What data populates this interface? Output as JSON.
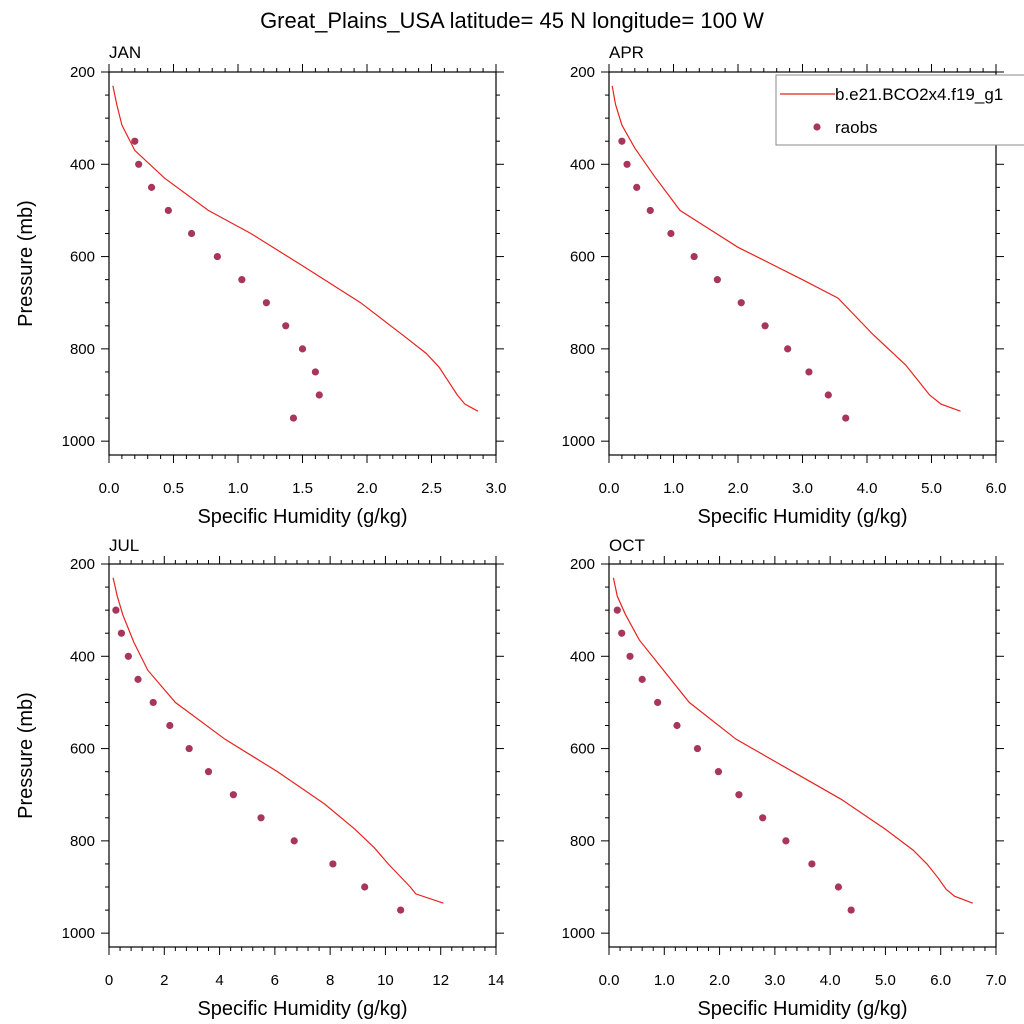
{
  "figure": {
    "title": "Great_Plains_USA  latitude= 45 N longitude= 100 W",
    "legend": {
      "entries": [
        {
          "label": "b.e21.BCO2x4.f19_g1",
          "kind": "line",
          "color": "#e8231f"
        },
        {
          "label": "raobs",
          "kind": "marker",
          "color": "#a8365a"
        }
      ]
    }
  },
  "chart_data": [
    {
      "type": "line",
      "panel_label": "JAN",
      "xlabel": "Specific Humidity (g/kg)",
      "ylabel": "Pressure (mb)",
      "xlim": [
        0,
        3
      ],
      "ylim": [
        200,
        1030
      ],
      "y_inverted": true,
      "xticks": [
        0,
        0.5,
        1,
        1.5,
        2,
        2.5,
        3
      ],
      "xtick_labels": [
        "0.0",
        "0.5",
        "1.0",
        "1.5",
        "2.0",
        "2.5",
        "3.0"
      ],
      "yticks": [
        200,
        400,
        600,
        800,
        1000
      ],
      "ytick_labels": [
        "200",
        "400",
        "600",
        "800",
        "1000"
      ],
      "series": [
        {
          "name": "b.e21.BCO2x4.f19_g1",
          "kind": "line",
          "color": "#e8231f",
          "x": [
            0.03,
            0.06,
            0.1,
            0.2,
            0.43,
            0.77,
            1.1,
            1.5,
            1.95,
            2.3,
            2.46,
            2.56,
            2.63,
            2.7,
            2.76,
            2.86
          ],
          "y": [
            230,
            270,
            315,
            370,
            430,
            500,
            550,
            620,
            700,
            775,
            810,
            840,
            870,
            900,
            920,
            935
          ]
        },
        {
          "name": "raobs",
          "kind": "marker",
          "color": "#a8365a",
          "x": [
            0.2,
            0.23,
            0.33,
            0.46,
            0.64,
            0.84,
            1.03,
            1.22,
            1.37,
            1.5,
            1.6,
            1.63,
            1.43
          ],
          "y": [
            350,
            400,
            450,
            500,
            550,
            600,
            650,
            700,
            750,
            800,
            850,
            900,
            950
          ]
        }
      ]
    },
    {
      "type": "line",
      "panel_label": "APR",
      "xlabel": "Specific Humidity (g/kg)",
      "ylabel": "",
      "xlim": [
        0,
        6
      ],
      "ylim": [
        200,
        1030
      ],
      "y_inverted": true,
      "xticks": [
        0,
        1,
        2,
        3,
        4,
        5,
        6
      ],
      "xtick_labels": [
        "0.0",
        "1.0",
        "2.0",
        "3.0",
        "4.0",
        "5.0",
        "6.0"
      ],
      "yticks": [
        200,
        400,
        600,
        800,
        1000
      ],
      "ytick_labels": [
        "200",
        "400",
        "600",
        "800",
        "1000"
      ],
      "series": [
        {
          "name": "b.e21.BCO2x4.f19_g1",
          "kind": "line",
          "color": "#e8231f",
          "x": [
            0.05,
            0.1,
            0.2,
            0.4,
            0.7,
            1.1,
            1.55,
            2.0,
            2.5,
            3.0,
            3.55,
            4.1,
            4.6,
            4.97,
            5.15,
            5.45
          ],
          "y": [
            230,
            270,
            315,
            365,
            425,
            500,
            540,
            580,
            615,
            650,
            690,
            770,
            835,
            900,
            920,
            935
          ]
        },
        {
          "name": "raobs",
          "kind": "marker",
          "color": "#a8365a",
          "x": [
            0.2,
            0.28,
            0.43,
            0.64,
            0.96,
            1.32,
            1.68,
            2.05,
            2.42,
            2.77,
            3.1,
            3.4,
            3.67
          ],
          "y": [
            350,
            400,
            450,
            500,
            550,
            600,
            650,
            700,
            750,
            800,
            850,
            900,
            950
          ]
        }
      ]
    },
    {
      "type": "line",
      "panel_label": "JUL",
      "xlabel": "Specific Humidity (g/kg)",
      "ylabel": "Pressure (mb)",
      "xlim": [
        0,
        14
      ],
      "ylim": [
        200,
        1030
      ],
      "y_inverted": true,
      "xticks": [
        0,
        2,
        4,
        6,
        8,
        10,
        12,
        14
      ],
      "xtick_labels": [
        "0",
        "2",
        "4",
        "6",
        "8",
        "10",
        "12",
        "14"
      ],
      "yticks": [
        200,
        400,
        600,
        800,
        1000
      ],
      "ytick_labels": [
        "200",
        "400",
        "600",
        "800",
        "1000"
      ],
      "series": [
        {
          "name": "b.e21.BCO2x4.f19_g1",
          "kind": "line",
          "color": "#e8231f",
          "x": [
            0.15,
            0.3,
            0.5,
            0.9,
            1.4,
            2.4,
            4.2,
            6.1,
            7.8,
            8.9,
            9.6,
            10.1,
            10.5,
            10.9,
            11.1,
            12.1
          ],
          "y": [
            230,
            270,
            310,
            370,
            430,
            500,
            580,
            650,
            720,
            775,
            815,
            850,
            875,
            900,
            915,
            935
          ]
        },
        {
          "name": "raobs",
          "kind": "marker",
          "color": "#a8365a",
          "x": [
            0.25,
            0.45,
            0.7,
            1.05,
            1.6,
            2.2,
            2.9,
            3.6,
            4.5,
            5.5,
            6.7,
            8.1,
            9.25,
            10.55
          ],
          "y": [
            300,
            350,
            400,
            450,
            500,
            550,
            600,
            650,
            700,
            750,
            800,
            850,
            900,
            950
          ]
        }
      ]
    },
    {
      "type": "line",
      "panel_label": "OCT",
      "xlabel": "Specific Humidity (g/kg)",
      "ylabel": "",
      "xlim": [
        0,
        7
      ],
      "ylim": [
        200,
        1030
      ],
      "y_inverted": true,
      "xticks": [
        0,
        1,
        2,
        3,
        4,
        5,
        6,
        7
      ],
      "xtick_labels": [
        "0.0",
        "1.0",
        "2.0",
        "3.0",
        "4.0",
        "5.0",
        "6.0",
        "7.0"
      ],
      "yticks": [
        200,
        400,
        600,
        800,
        1000
      ],
      "ytick_labels": [
        "200",
        "400",
        "600",
        "800",
        "1000"
      ],
      "series": [
        {
          "name": "b.e21.BCO2x4.f19_g1",
          "kind": "line",
          "color": "#e8231f",
          "x": [
            0.08,
            0.15,
            0.3,
            0.55,
            0.95,
            1.45,
            2.3,
            3.25,
            4.2,
            5.0,
            5.5,
            5.75,
            5.95,
            6.1,
            6.25,
            6.58
          ],
          "y": [
            230,
            270,
            310,
            365,
            425,
            500,
            580,
            645,
            710,
            775,
            820,
            850,
            880,
            905,
            920,
            935
          ]
        },
        {
          "name": "raobs",
          "kind": "marker",
          "color": "#a8365a",
          "x": [
            0.15,
            0.23,
            0.38,
            0.6,
            0.88,
            1.23,
            1.6,
            1.98,
            2.35,
            2.78,
            3.2,
            3.67,
            4.15,
            4.38
          ],
          "y": [
            300,
            350,
            400,
            450,
            500,
            550,
            600,
            650,
            700,
            750,
            800,
            850,
            900,
            950
          ]
        }
      ]
    }
  ]
}
